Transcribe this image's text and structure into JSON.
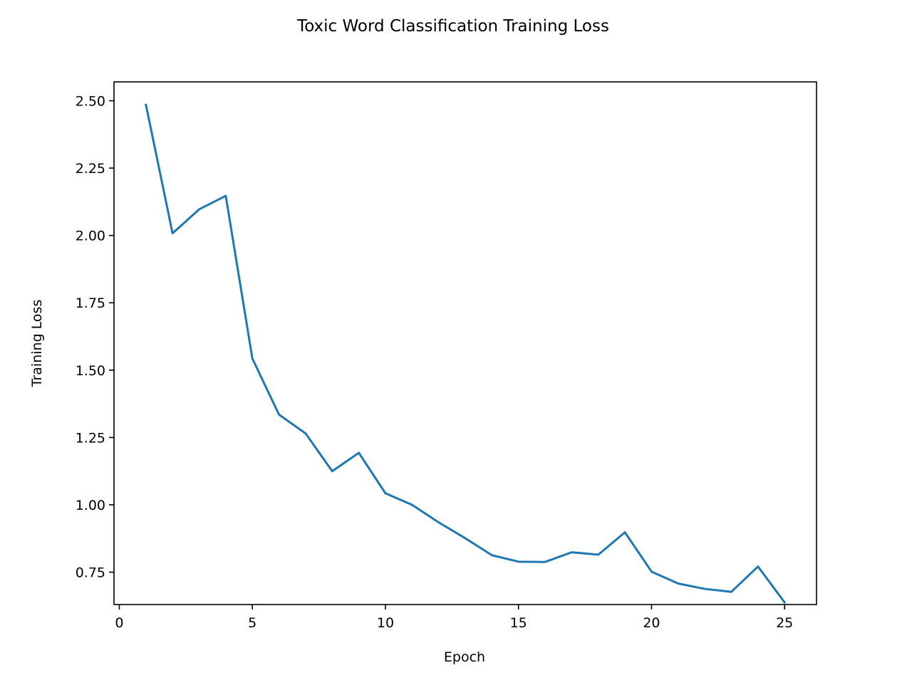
{
  "chart_data": {
    "type": "line",
    "title": "Toxic Word Classification Training Loss",
    "xlabel": "Epoch",
    "ylabel": "Training Loss",
    "xlim": [
      -0.2,
      26.2
    ],
    "ylim": [
      0.63,
      2.57
    ],
    "xticks": [
      0,
      5,
      10,
      15,
      20,
      25
    ],
    "xtick_labels": [
      "0",
      "5",
      "10",
      "15",
      "20",
      "25"
    ],
    "yticks": [
      0.75,
      1.0,
      1.25,
      1.5,
      1.75,
      2.0,
      2.25,
      2.5
    ],
    "ytick_labels": [
      "0.75",
      "1.00",
      "1.25",
      "1.50",
      "1.75",
      "2.00",
      "2.25",
      "2.50"
    ],
    "grid": false,
    "series": [
      {
        "x": [
          1,
          2,
          3,
          4,
          5,
          6,
          7,
          8,
          9,
          10,
          11,
          12,
          13,
          14,
          15,
          16,
          17,
          18,
          19,
          20,
          21,
          22,
          23,
          24,
          25
        ],
        "values": [
          2.485,
          2.008,
          2.097,
          2.147,
          1.543,
          1.335,
          1.265,
          1.125,
          1.193,
          1.043,
          1.0,
          0.935,
          0.876,
          0.813,
          0.789,
          0.788,
          0.824,
          0.815,
          0.898,
          0.752,
          0.708,
          0.688,
          0.677,
          0.771,
          0.638
        ],
        "color": "#1f77b4"
      }
    ]
  }
}
